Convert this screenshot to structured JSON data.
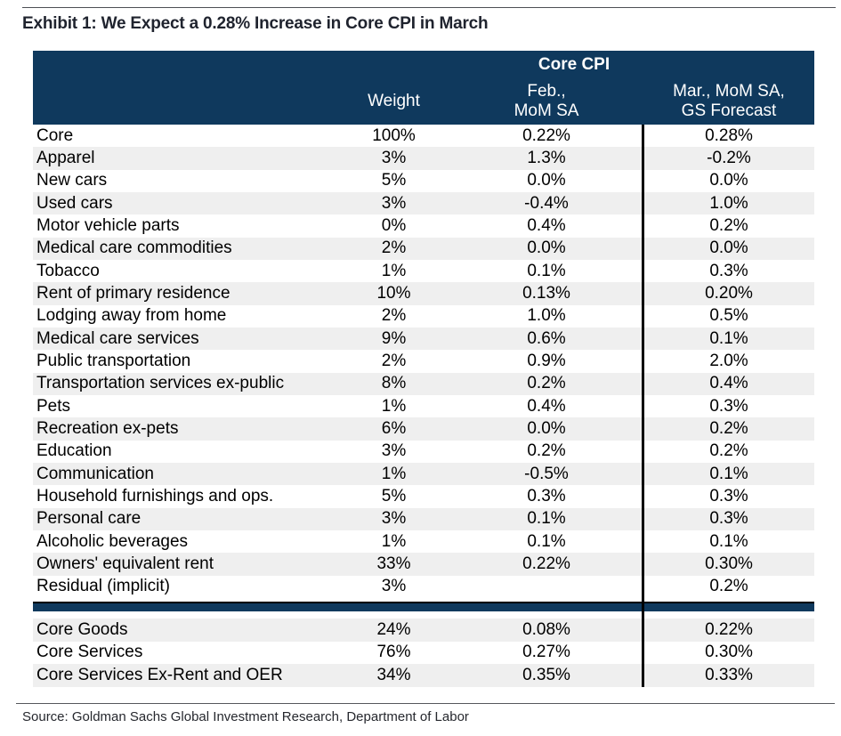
{
  "page": {
    "title": "Exhibit 1: We Expect a 0.28% Increase in Core CPI in March",
    "source": "Source: Goldman Sachs Global Investment Research, Department of Labor"
  },
  "colors": {
    "header_navy": "#0f395d",
    "stripe_gray": "#efefef",
    "divider_black": "#000000",
    "title_text": "#1f232e"
  },
  "table_header": {
    "group": "Core CPI",
    "weight": "Weight",
    "feb": [
      "Feb.,",
      "MoM SA"
    ],
    "mar": [
      "Mar., MoM SA,",
      "GS Forecast"
    ]
  },
  "chart_data": {
    "type": "table",
    "title": "Exhibit 1: We Expect a 0.28% Increase in Core CPI in March",
    "group_header": "Core CPI",
    "columns": [
      "",
      "Weight",
      "Feb., MoM SA",
      "Mar., MoM SA, GS Forecast"
    ],
    "rows": [
      {
        "category": "Core",
        "weight": "100%",
        "feb": "0.22%",
        "mar": "0.28%"
      },
      {
        "category": "Apparel",
        "weight": "3%",
        "feb": "1.3%",
        "mar": "-0.2%"
      },
      {
        "category": "New cars",
        "weight": "5%",
        "feb": "0.0%",
        "mar": "0.0%"
      },
      {
        "category": "Used cars",
        "weight": "3%",
        "feb": "-0.4%",
        "mar": "1.0%"
      },
      {
        "category": "Motor vehicle parts",
        "weight": "0%",
        "feb": "0.4%",
        "mar": "0.2%"
      },
      {
        "category": "Medical care commodities",
        "weight": "2%",
        "feb": "0.0%",
        "mar": "0.0%"
      },
      {
        "category": "Tobacco",
        "weight": "1%",
        "feb": "0.1%",
        "mar": "0.3%"
      },
      {
        "category": "Rent of primary residence",
        "weight": "10%",
        "feb": "0.13%",
        "mar": "0.20%"
      },
      {
        "category": "Lodging away from home",
        "weight": "2%",
        "feb": "1.0%",
        "mar": "0.5%"
      },
      {
        "category": "Medical care services",
        "weight": "9%",
        "feb": "0.6%",
        "mar": "0.1%"
      },
      {
        "category": "Public transportation",
        "weight": "2%",
        "feb": "0.9%",
        "mar": "2.0%"
      },
      {
        "category": "Transportation services ex-public",
        "weight": "8%",
        "feb": "0.2%",
        "mar": "0.4%"
      },
      {
        "category": "Pets",
        "weight": "1%",
        "feb": "0.4%",
        "mar": "0.3%"
      },
      {
        "category": "Recreation ex-pets",
        "weight": "6%",
        "feb": "0.0%",
        "mar": "0.2%"
      },
      {
        "category": "Education",
        "weight": "3%",
        "feb": "0.2%",
        "mar": "0.2%"
      },
      {
        "category": "Communication",
        "weight": "1%",
        "feb": "-0.5%",
        "mar": "0.1%"
      },
      {
        "category": "Household furnishings and ops.",
        "weight": "5%",
        "feb": "0.3%",
        "mar": "0.3%"
      },
      {
        "category": "Personal care",
        "weight": "3%",
        "feb": "0.1%",
        "mar": "0.3%"
      },
      {
        "category": "Alcoholic beverages",
        "weight": "1%",
        "feb": "0.1%",
        "mar": "0.1%"
      },
      {
        "category": "Owners' equivalent rent",
        "weight": "33%",
        "feb": "0.22%",
        "mar": "0.30%"
      },
      {
        "category": "Residual (implicit)",
        "weight": "3%",
        "feb": "",
        "mar": "0.2%"
      }
    ],
    "summary_rows": [
      {
        "category": "Core Goods",
        "weight": "24%",
        "feb": "0.08%",
        "mar": "0.22%"
      },
      {
        "category": "Core Services",
        "weight": "76%",
        "feb": "0.27%",
        "mar": "0.30%"
      },
      {
        "category": "Core Services Ex-Rent and OER",
        "weight": "34%",
        "feb": "0.35%",
        "mar": "0.33%"
      }
    ],
    "source": "Source: Goldman Sachs Global Investment Research, Department of Labor",
    "layout": {
      "stripe_pattern": "alternating",
      "divider_between": [
        "Feb., MoM SA",
        "Mar., MoM SA, GS Forecast"
      ]
    }
  }
}
